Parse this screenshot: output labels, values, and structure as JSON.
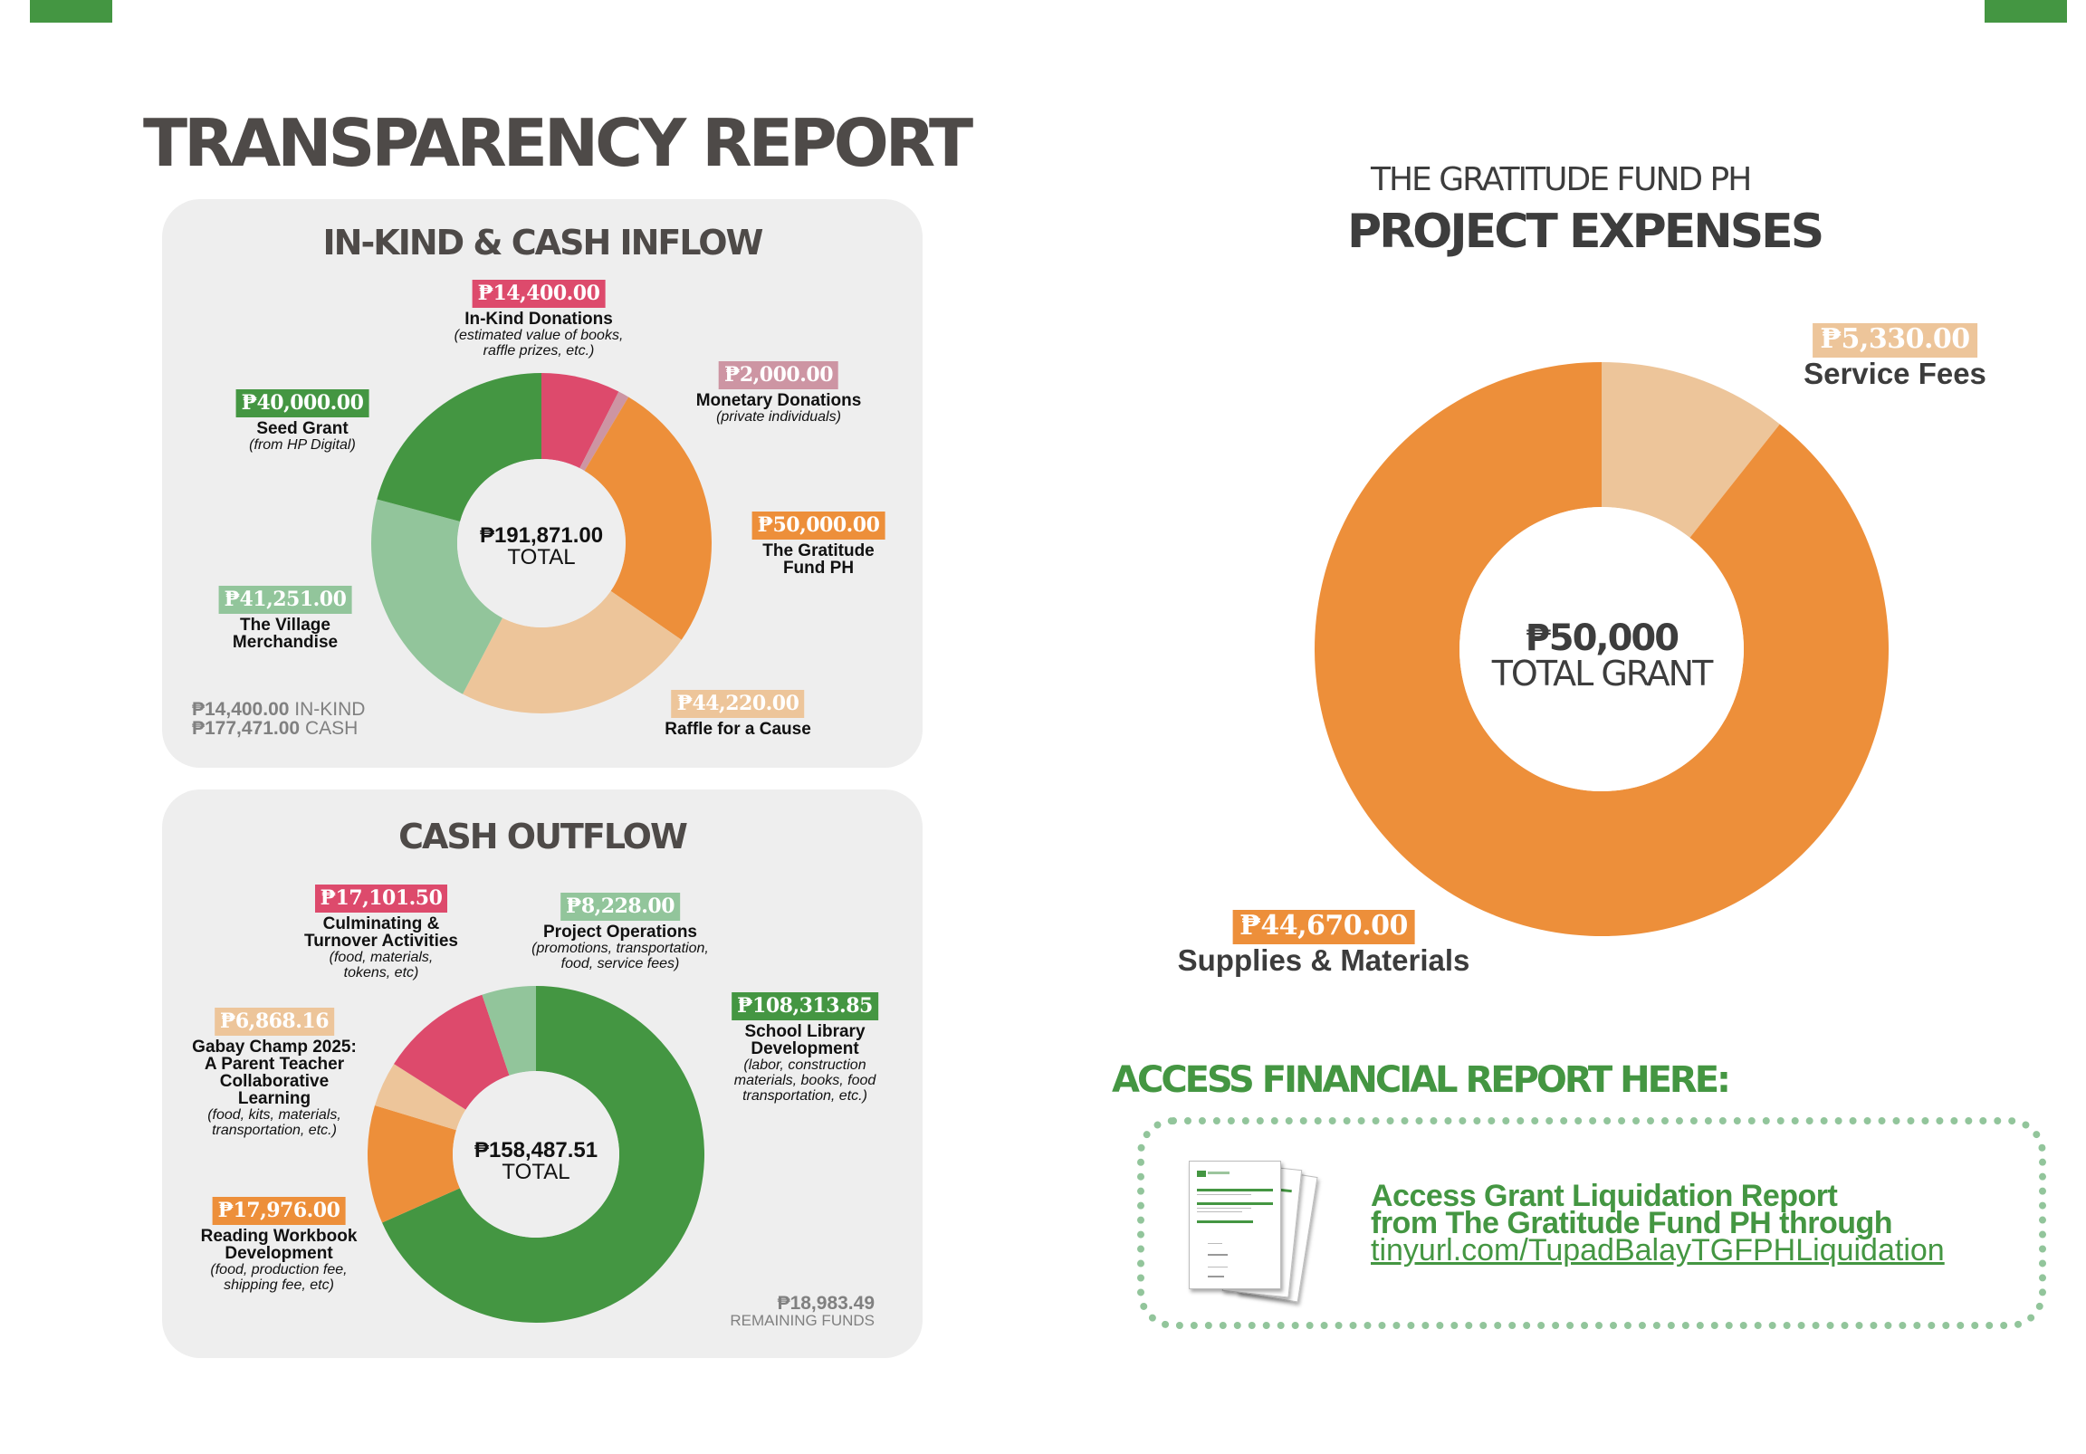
{
  "header": {
    "title": "TRANSPARENCY REPORT",
    "brand_color": "#449642"
  },
  "colors": {
    "pink": "#dd4a6c",
    "mauve": "#cd95a3",
    "orange": "#ed8f3a",
    "peach": "#edc59a",
    "light_green": "#92c59b",
    "green": "#449642",
    "panel_bg": "#eeeeee"
  },
  "inflow": {
    "title": "IN-KIND & CASH INFLOW",
    "center_value": "₱191,871.00",
    "center_label": "TOTAL",
    "summary": {
      "inkind_value": "₱14,400.00",
      "inkind_label": "IN-KIND",
      "cash_value": "₱177,471.00",
      "cash_label": "CASH"
    },
    "labels": [
      {
        "amount": "₱14,400.00",
        "name": "In-Kind Donations",
        "sub1": "(estimated value of books,",
        "sub2": "raffle prizes, etc.)"
      },
      {
        "amount": "₱2,000.00",
        "name": "Monetary Donations",
        "sub1": "(private individuals)"
      },
      {
        "amount": "₱50,000.00",
        "name": "The Gratitude",
        "name2": "Fund PH"
      },
      {
        "amount": "₱44,220.00",
        "name": "Raffle for a Cause"
      },
      {
        "amount": "₱41,251.00",
        "name": "The Village",
        "name2": "Merchandise"
      },
      {
        "amount": "₱40,000.00",
        "name": "Seed Grant",
        "sub1": "(from HP Digital)"
      }
    ]
  },
  "outflow": {
    "title": "CASH OUTFLOW",
    "center_value": "₱158,487.51",
    "center_label": "TOTAL",
    "remaining_value": "₱18,983.49",
    "remaining_label": "REMAINING FUNDS",
    "labels": [
      {
        "amount": "₱108,313.85",
        "name": "School Library",
        "name2": "Development",
        "sub1": "(labor, construction",
        "sub2": "materials, books, food",
        "sub3": "transportation, etc.)"
      },
      {
        "amount": "₱17,976.00",
        "name": "Reading Workbook",
        "name2": "Development",
        "sub1": "(food, production fee,",
        "sub2": "shipping fee, etc)"
      },
      {
        "amount": "₱6,868.16",
        "name": "Gabay Champ 2025:",
        "name2": "A Parent Teacher",
        "name3": "Collaborative",
        "name4": "Learning",
        "sub1": "(food, kits, materials,",
        "sub2": "transportation, etc.)"
      },
      {
        "amount": "₱17,101.50",
        "name": "Culminating &",
        "name2": "Turnover Activities",
        "sub1": "(food, materials,",
        "sub2": "tokens, etc)"
      },
      {
        "amount": "₱8,228.00",
        "name": "Project Operations",
        "sub1": "(promotions, transportation,",
        "sub2": "food, service fees)"
      }
    ]
  },
  "expenses": {
    "subtitle": "THE GRATITUDE FUND PH",
    "title": "PROJECT EXPENSES",
    "center_value": "₱50,000",
    "center_label": "TOTAL GRANT",
    "labels": [
      {
        "amount": "₱5,330.00",
        "name": "Service Fees"
      },
      {
        "amount": "₱44,670.00",
        "name": "Supplies & Materials"
      }
    ]
  },
  "access": {
    "heading": "ACCESS FINANCIAL REPORT HERE:",
    "line1": "Access Grant Liquidation Report",
    "line2": "from The Gratitude Fund PH through",
    "link": "tinyurl.com/TupadBalayTGFPHLiquidation",
    "doc_icon": "document-stack-icon"
  },
  "chart_data": [
    {
      "type": "pie",
      "title": "IN-KIND & CASH INFLOW",
      "donut": true,
      "total": 191871.0,
      "categories": [
        "In-Kind Donations",
        "Monetary Donations",
        "The Gratitude Fund PH",
        "Raffle for a Cause",
        "The Village Merchandise",
        "Seed Grant"
      ],
      "values": [
        14400.0,
        2000.0,
        50000.0,
        44220.0,
        41251.0,
        40000.0
      ],
      "colors": [
        "#dd4a6c",
        "#cd95a3",
        "#ed8f3a",
        "#edc59a",
        "#92c59b",
        "#449642"
      ]
    },
    {
      "type": "pie",
      "title": "CASH OUTFLOW",
      "donut": true,
      "total": 158487.51,
      "categories": [
        "School Library Development",
        "Reading Workbook Development",
        "Gabay Champ 2025: A Parent Teacher Collaborative Learning",
        "Culminating & Turnover Activities",
        "Project Operations"
      ],
      "values": [
        108313.85,
        17976.0,
        6868.16,
        17101.5,
        8228.0
      ],
      "colors": [
        "#449642",
        "#ed8f3a",
        "#edc59a",
        "#dd4a6c",
        "#92c59b"
      ]
    },
    {
      "type": "pie",
      "title": "PROJECT EXPENSES",
      "donut": true,
      "total": 50000,
      "categories": [
        "Service Fees",
        "Supplies & Materials"
      ],
      "values": [
        5330.0,
        44670.0
      ],
      "colors": [
        "#edc59a",
        "#ed8f3a"
      ]
    }
  ]
}
